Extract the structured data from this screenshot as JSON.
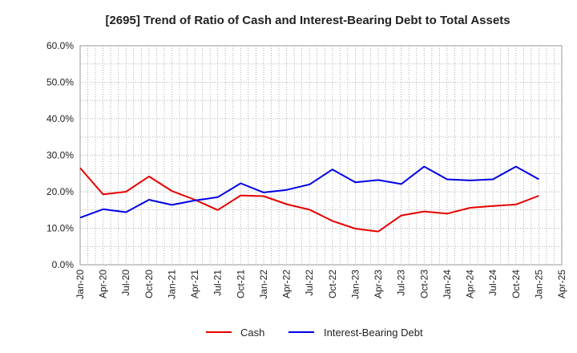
{
  "chart_data": {
    "type": "line",
    "title": "[2695]  Trend of Ratio of Cash and Interest-Bearing Debt to Total Assets",
    "xlabel": "",
    "ylabel": "",
    "categories": [
      "Jan-20",
      "Apr-20",
      "Jul-20",
      "Oct-20",
      "Jan-21",
      "Apr-21",
      "Jul-21",
      "Oct-21",
      "Jan-22",
      "Apr-22",
      "Jul-22",
      "Oct-22",
      "Jan-23",
      "Apr-23",
      "Jul-23",
      "Oct-23",
      "Jan-24",
      "Apr-24",
      "Jul-24",
      "Oct-24",
      "Jan-25",
      "Apr-25"
    ],
    "y_ticks": [
      "0.0%",
      "10.0%",
      "20.0%",
      "30.0%",
      "40.0%",
      "50.0%",
      "60.0%"
    ],
    "ylim": [
      0,
      60
    ],
    "y_unit": "%",
    "grid": true,
    "legend_position": "bottom-center",
    "series": [
      {
        "name": "Cash",
        "color": "#e60000",
        "values": [
          26.5,
          19.3,
          20.0,
          24.2,
          20.2,
          17.8,
          15.0,
          19.0,
          18.8,
          16.6,
          15.1,
          12.0,
          9.9,
          9.1,
          13.5,
          14.6,
          14.0,
          15.6,
          16.1,
          16.5,
          18.9,
          null
        ]
      },
      {
        "name": "Interest-Bearing Debt",
        "color": "#0000e6",
        "values": [
          12.9,
          15.2,
          14.4,
          17.8,
          16.4,
          17.6,
          18.5,
          22.3,
          19.8,
          20.5,
          22.0,
          26.1,
          22.6,
          23.2,
          22.1,
          26.9,
          23.4,
          23.1,
          23.4,
          26.9,
          23.4,
          null
        ]
      }
    ]
  }
}
